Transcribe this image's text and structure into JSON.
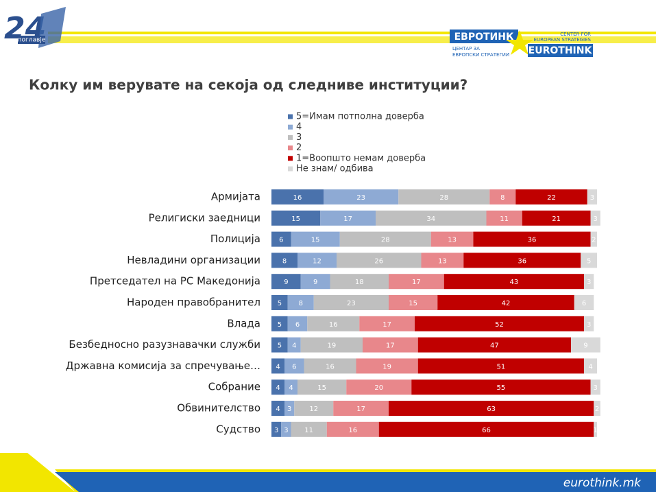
{
  "branding": {
    "logo_left_number": "24",
    "logo_left_word": "поглавје",
    "logo_right_mk": "ЕВРОТИНК",
    "logo_right_mk_sub": [
      "ЦЕНТАР ЗА",
      "ЕВРОПСКИ СТРАТЕГИИ"
    ],
    "logo_right_en": "EUROTHINK",
    "logo_right_en_sub": [
      "CENTER FOR",
      "EUROPEAN STRATEGIES"
    ],
    "footer_url": "eurothink.mk"
  },
  "chart_data": {
    "type": "stacked-bar-horizontal",
    "title": "Колку им верувате на секоја од следниве институции?",
    "categories": [
      "Армијата",
      "Религиски заедници",
      "Полиција",
      "Невладини организации",
      "Претседател на РС Македонија",
      "Народен правобранител",
      "Влада",
      "Безбедносно разузнавачки служби",
      "Државна комисија за спречување…",
      "Собрание",
      "Обвинителство",
      "Судство"
    ],
    "xlim": [
      0,
      100
    ],
    "series": [
      {
        "name": "5=Имам потполна доверба",
        "color": "#4a72ac",
        "values": [
          16,
          15,
          6,
          8,
          9,
          5,
          5,
          5,
          4,
          4,
          4,
          3
        ]
      },
      {
        "name": "4",
        "color": "#8eaad4",
        "values": [
          23,
          17,
          15,
          12,
          9,
          8,
          6,
          4,
          6,
          4,
          3,
          3
        ]
      },
      {
        "name": "3",
        "color": "#bfbfbf",
        "values": [
          28,
          34,
          28,
          26,
          18,
          23,
          16,
          19,
          16,
          15,
          12,
          11
        ]
      },
      {
        "name": "2",
        "color": "#e8878b",
        "values": [
          8,
          11,
          13,
          13,
          17,
          15,
          17,
          17,
          19,
          20,
          17,
          16
        ]
      },
      {
        "name": "1=Воопшто немам доверба",
        "color": "#c00000",
        "values": [
          22,
          21,
          36,
          36,
          43,
          42,
          52,
          47,
          51,
          55,
          63,
          66
        ]
      },
      {
        "name": "Не знам/ одбива",
        "color": "#d9d9d9",
        "values": [
          3,
          3,
          2,
          5,
          3,
          6,
          3,
          9,
          4,
          3,
          2,
          1
        ]
      }
    ]
  }
}
